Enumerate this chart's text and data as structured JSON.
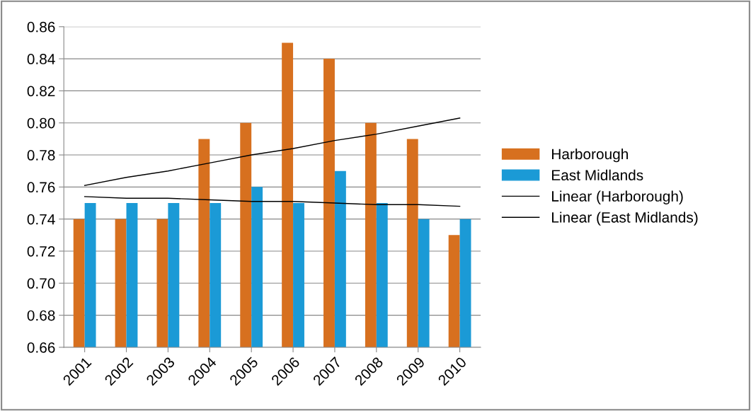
{
  "chart_data": {
    "type": "bar",
    "categories": [
      "2001",
      "2002",
      "2003",
      "2004",
      "2005",
      "2006",
      "2007",
      "2008",
      "2009",
      "2010"
    ],
    "series": [
      {
        "name": "Harborough",
        "color": "#d7701f",
        "values": [
          0.74,
          0.74,
          0.74,
          0.79,
          0.8,
          0.85,
          0.84,
          0.8,
          0.79,
          0.73
        ]
      },
      {
        "name": "East Midlands",
        "color": "#1b9ad6",
        "values": [
          0.75,
          0.75,
          0.75,
          0.75,
          0.76,
          0.75,
          0.77,
          0.75,
          0.74,
          0.74
        ]
      },
      {
        "name": "Linear (Harborough)",
        "type": "line",
        "color": "#000000",
        "values": [
          0.761,
          0.766,
          0.77,
          0.775,
          0.78,
          0.784,
          0.789,
          0.793,
          0.798,
          0.803
        ]
      },
      {
        "name": "Linear (East Midlands)",
        "type": "line",
        "color": "#000000",
        "values": [
          0.754,
          0.753,
          0.753,
          0.752,
          0.751,
          0.751,
          0.75,
          0.749,
          0.749,
          0.748
        ]
      }
    ],
    "ylim": [
      0.66,
      0.86
    ],
    "yticks": [
      {
        "value": 0.66,
        "label": "0.66"
      },
      {
        "value": 0.68,
        "label": "0.68"
      },
      {
        "value": 0.7,
        "label": "0.70"
      },
      {
        "value": 0.72,
        "label": "0.72"
      },
      {
        "value": 0.74,
        "label": "0.74"
      },
      {
        "value": 0.76,
        "label": "0.76"
      },
      {
        "value": 0.78,
        "label": "0.78"
      },
      {
        "value": 0.8,
        "label": "0.80"
      },
      {
        "value": 0.82,
        "label": "0.82"
      },
      {
        "value": 0.84,
        "label": "0.84"
      },
      {
        "value": 0.86,
        "label": "0.86"
      }
    ],
    "grid": "y",
    "legend": "right"
  }
}
